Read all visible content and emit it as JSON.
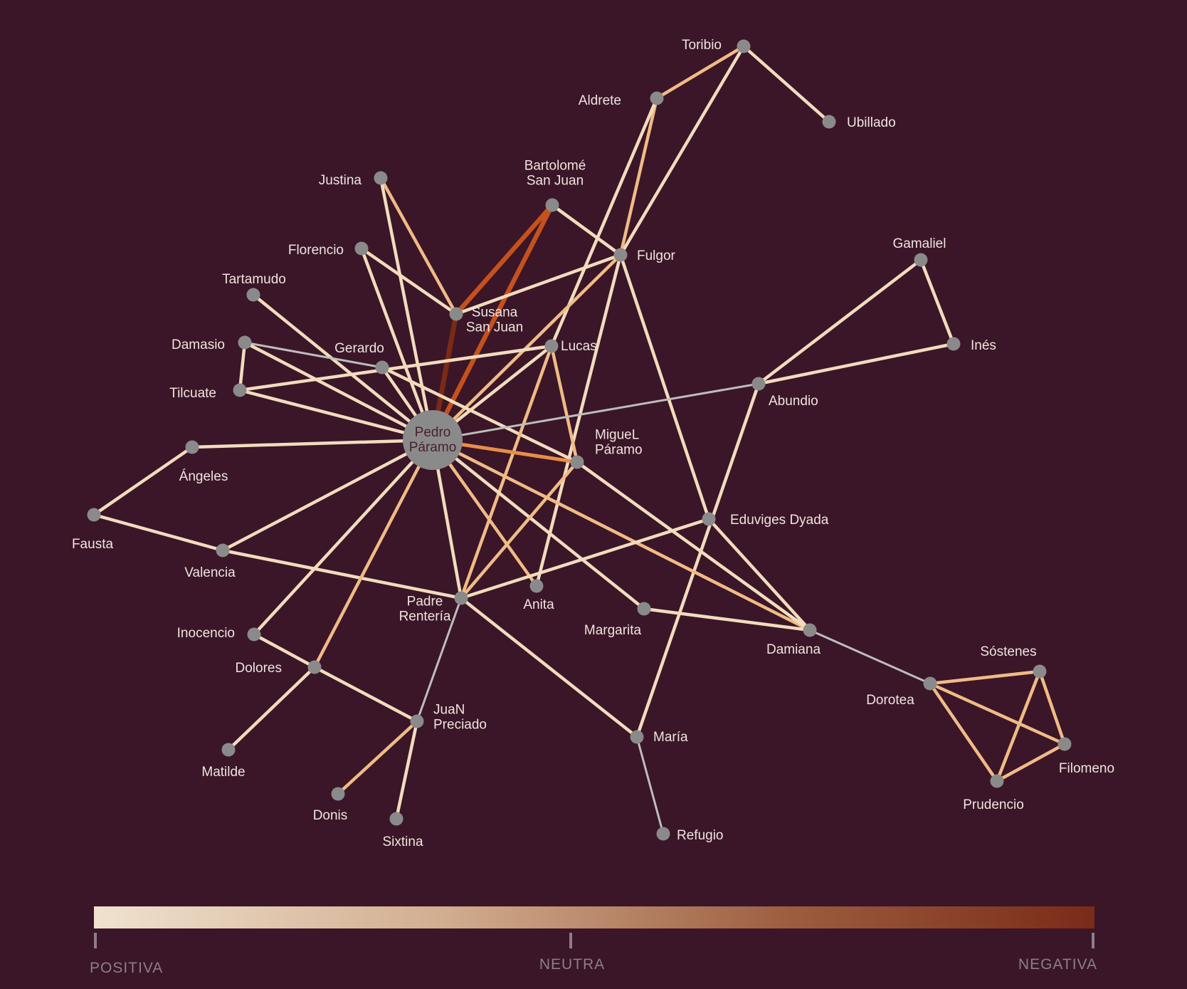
{
  "colors": {
    "background": "#3a1628",
    "node": "#8a8a8a",
    "positive": "#f1dcbd",
    "mild": "#f0bb85",
    "medium": "#e88d4a",
    "strong": "#c5511d",
    "very_strong": "#7a2a15",
    "neutral": "#bdbdbd",
    "legend_text": "#8b7f88"
  },
  "legend": {
    "positive": "POSITIVA",
    "neutral": "NEUTRA",
    "negative": "NEGATIVA",
    "gradient": [
      "#efe2cf",
      "#d2ad8f",
      "#9c5c3e",
      "#7a2b18"
    ]
  },
  "nodes": [
    {
      "id": "pedro",
      "label": [
        "Pedro",
        "Páramo"
      ],
      "central": true
    },
    {
      "id": "toribio",
      "label": [
        "Toribio"
      ]
    },
    {
      "id": "aldrete",
      "label": [
        "Aldrete"
      ]
    },
    {
      "id": "ubillado",
      "label": [
        "Ubillado"
      ]
    },
    {
      "id": "justina",
      "label": [
        "Justina"
      ]
    },
    {
      "id": "bartolome",
      "label": [
        "Bartolomé",
        "San Juan"
      ]
    },
    {
      "id": "florencio",
      "label": [
        "Florencio"
      ]
    },
    {
      "id": "fulgor",
      "label": [
        "Fulgor"
      ]
    },
    {
      "id": "gamaliel",
      "label": [
        "Gamaliel"
      ]
    },
    {
      "id": "tartamudo",
      "label": [
        "Tartamudo"
      ]
    },
    {
      "id": "susana",
      "label": [
        "Susana",
        "San Juan"
      ]
    },
    {
      "id": "damasio",
      "label": [
        "Damasio"
      ]
    },
    {
      "id": "gerardo",
      "label": [
        "Gerardo"
      ]
    },
    {
      "id": "lucas",
      "label": [
        "Lucas"
      ]
    },
    {
      "id": "ines",
      "label": [
        "Inés"
      ]
    },
    {
      "id": "tilcuate",
      "label": [
        "Tilcuate"
      ]
    },
    {
      "id": "abundio",
      "label": [
        "Abundio"
      ]
    },
    {
      "id": "angeles",
      "label": [
        "Ángeles"
      ]
    },
    {
      "id": "miguel",
      "label": [
        "MigueL",
        "Páramo"
      ]
    },
    {
      "id": "fausta",
      "label": [
        "Fausta"
      ]
    },
    {
      "id": "eduviges",
      "label": [
        "Eduviges Dyada"
      ]
    },
    {
      "id": "valencia",
      "label": [
        "Valencia"
      ]
    },
    {
      "id": "anita",
      "label": [
        "Anita"
      ]
    },
    {
      "id": "padre",
      "label": [
        "Padre",
        "Rentería"
      ]
    },
    {
      "id": "margarita",
      "label": [
        "Margarita"
      ]
    },
    {
      "id": "inocencio",
      "label": [
        "Inocencio"
      ]
    },
    {
      "id": "damiana",
      "label": [
        "Damiana"
      ]
    },
    {
      "id": "sostenes",
      "label": [
        "Sóstenes"
      ]
    },
    {
      "id": "dolores",
      "label": [
        "Dolores"
      ]
    },
    {
      "id": "dorotea",
      "label": [
        "Dorotea"
      ]
    },
    {
      "id": "juan",
      "label": [
        "JuaN",
        "Preciado"
      ]
    },
    {
      "id": "maria",
      "label": [
        "María"
      ]
    },
    {
      "id": "filomeno",
      "label": [
        "Filomeno"
      ]
    },
    {
      "id": "matilde",
      "label": [
        "Matilde"
      ]
    },
    {
      "id": "donis",
      "label": [
        "Donis"
      ]
    },
    {
      "id": "prudencio",
      "label": [
        "Prudencio"
      ]
    },
    {
      "id": "sixtina",
      "label": [
        "Sixtina"
      ]
    },
    {
      "id": "refugio",
      "label": [
        "Refugio"
      ]
    }
  ],
  "edges": [
    {
      "source": "toribio",
      "target": "aldrete",
      "sentiment": "mild"
    },
    {
      "source": "toribio",
      "target": "ubillado",
      "sentiment": "positive"
    },
    {
      "source": "toribio",
      "target": "fulgor",
      "sentiment": "positive"
    },
    {
      "source": "aldrete",
      "target": "fulgor",
      "sentiment": "mild"
    },
    {
      "source": "aldrete",
      "target": "lucas",
      "sentiment": "positive"
    },
    {
      "source": "justina",
      "target": "susana",
      "sentiment": "mild"
    },
    {
      "source": "justina",
      "target": "pedro",
      "sentiment": "positive"
    },
    {
      "source": "bartolome",
      "target": "susana",
      "sentiment": "strong"
    },
    {
      "source": "bartolome",
      "target": "pedro",
      "sentiment": "strong"
    },
    {
      "source": "bartolome",
      "target": "fulgor",
      "sentiment": "positive"
    },
    {
      "source": "florencio",
      "target": "susana",
      "sentiment": "positive"
    },
    {
      "source": "florencio",
      "target": "pedro",
      "sentiment": "positive"
    },
    {
      "source": "susana",
      "target": "fulgor",
      "sentiment": "positive"
    },
    {
      "source": "susana",
      "target": "pedro",
      "sentiment": "very_strong"
    },
    {
      "source": "fulgor",
      "target": "pedro",
      "sentiment": "mild"
    },
    {
      "source": "fulgor",
      "target": "anita",
      "sentiment": "positive"
    },
    {
      "source": "fulgor",
      "target": "eduviges",
      "sentiment": "positive"
    },
    {
      "source": "gamaliel",
      "target": "ines",
      "sentiment": "positive"
    },
    {
      "source": "gamaliel",
      "target": "abundio",
      "sentiment": "positive"
    },
    {
      "source": "ines",
      "target": "abundio",
      "sentiment": "positive"
    },
    {
      "source": "tartamudo",
      "target": "pedro",
      "sentiment": "positive"
    },
    {
      "source": "damasio",
      "target": "tilcuate",
      "sentiment": "positive"
    },
    {
      "source": "damasio",
      "target": "gerardo",
      "sentiment": "neutral"
    },
    {
      "source": "damasio",
      "target": "pedro",
      "sentiment": "positive"
    },
    {
      "source": "tilcuate",
      "target": "lucas",
      "sentiment": "positive"
    },
    {
      "source": "tilcuate",
      "target": "pedro",
      "sentiment": "positive"
    },
    {
      "source": "gerardo",
      "target": "pedro",
      "sentiment": "positive"
    },
    {
      "source": "gerardo",
      "target": "miguel",
      "sentiment": "positive"
    },
    {
      "source": "lucas",
      "target": "pedro",
      "sentiment": "positive"
    },
    {
      "source": "lucas",
      "target": "miguel",
      "sentiment": "mild"
    },
    {
      "source": "lucas",
      "target": "padre",
      "sentiment": "mild"
    },
    {
      "source": "abundio",
      "target": "pedro",
      "sentiment": "neutral"
    },
    {
      "source": "abundio",
      "target": "maria",
      "sentiment": "positive"
    },
    {
      "source": "angeles",
      "target": "pedro",
      "sentiment": "positive"
    },
    {
      "source": "angeles",
      "target": "fausta",
      "sentiment": "positive"
    },
    {
      "source": "fausta",
      "target": "valencia",
      "sentiment": "positive"
    },
    {
      "source": "valencia",
      "target": "pedro",
      "sentiment": "positive"
    },
    {
      "source": "valencia",
      "target": "padre",
      "sentiment": "positive"
    },
    {
      "source": "pedro",
      "target": "miguel",
      "sentiment": "medium"
    },
    {
      "source": "pedro",
      "target": "padre",
      "sentiment": "positive"
    },
    {
      "source": "pedro",
      "target": "anita",
      "sentiment": "mild"
    },
    {
      "source": "pedro",
      "target": "margarita",
      "sentiment": "positive"
    },
    {
      "source": "pedro",
      "target": "damiana",
      "sentiment": "mild"
    },
    {
      "source": "pedro",
      "target": "inocencio",
      "sentiment": "positive"
    },
    {
      "source": "pedro",
      "target": "dolores",
      "sentiment": "mild"
    },
    {
      "source": "miguel",
      "target": "padre",
      "sentiment": "mild"
    },
    {
      "source": "miguel",
      "target": "damiana",
      "sentiment": "positive"
    },
    {
      "source": "eduviges",
      "target": "padre",
      "sentiment": "positive"
    },
    {
      "source": "eduviges",
      "target": "damiana",
      "sentiment": "positive"
    },
    {
      "source": "margarita",
      "target": "damiana",
      "sentiment": "positive"
    },
    {
      "source": "padre",
      "target": "juan",
      "sentiment": "neutral"
    },
    {
      "source": "padre",
      "target": "maria",
      "sentiment": "positive"
    },
    {
      "source": "inocencio",
      "target": "dolores",
      "sentiment": "positive"
    },
    {
      "source": "dolores",
      "target": "juan",
      "sentiment": "positive"
    },
    {
      "source": "dolores",
      "target": "matilde",
      "sentiment": "positive"
    },
    {
      "source": "juan",
      "target": "donis",
      "sentiment": "mild"
    },
    {
      "source": "juan",
      "target": "sixtina",
      "sentiment": "positive"
    },
    {
      "source": "maria",
      "target": "refugio",
      "sentiment": "neutral"
    },
    {
      "source": "damiana",
      "target": "dorotea",
      "sentiment": "neutral"
    },
    {
      "source": "dorotea",
      "target": "sostenes",
      "sentiment": "mild"
    },
    {
      "source": "dorotea",
      "target": "filomeno",
      "sentiment": "mild"
    },
    {
      "source": "dorotea",
      "target": "prudencio",
      "sentiment": "mild"
    },
    {
      "source": "sostenes",
      "target": "filomeno",
      "sentiment": "mild"
    },
    {
      "source": "sostenes",
      "target": "prudencio",
      "sentiment": "mild"
    },
    {
      "source": "filomeno",
      "target": "prudencio",
      "sentiment": "mild"
    }
  ]
}
